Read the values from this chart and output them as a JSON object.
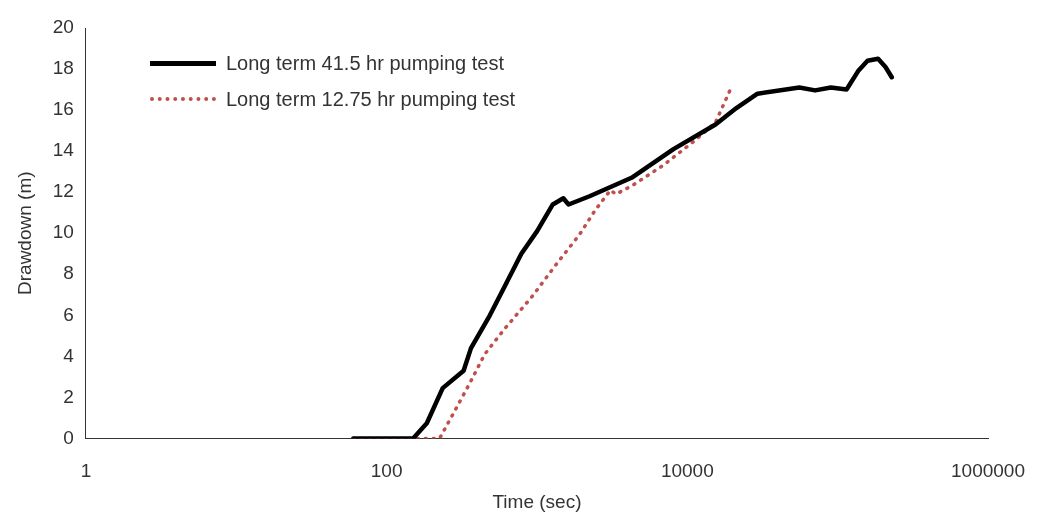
{
  "chart_data": {
    "type": "line",
    "xlabel": "Time (sec)",
    "ylabel": "Drawdown (m)",
    "log": "x",
    "xlim": [
      1,
      1000000
    ],
    "xticks": [
      1,
      100,
      10000,
      1000000
    ],
    "ylim": [
      0,
      20
    ],
    "yticks": [
      0,
      2,
      4,
      6,
      8,
      10,
      12,
      14,
      16,
      18,
      20
    ],
    "grid": false,
    "legend": "top left",
    "marker": "none",
    "series": [
      {
        "name": "Long term 41.5 hr pumping test",
        "color": "#000000",
        "line_style": "solid",
        "x": [
          60,
          150,
          185,
          236,
          325,
          364,
          486,
          619,
          787,
          1002,
          1274,
          1497,
          1622,
          2237,
          4255,
          8090,
          15400,
          21200,
          29300,
          55600,
          70800,
          90100,
          114600,
          136800,
          158000,
          185700,
          208000,
          229000
        ],
        "values": [
          0,
          0,
          0.74,
          2.45,
          3.3,
          4.4,
          6.0,
          7.5,
          9.0,
          10.1,
          11.4,
          11.7,
          11.4,
          11.8,
          12.7,
          14.1,
          15.3,
          16.1,
          16.8,
          17.1,
          16.96,
          17.1,
          17.0,
          17.9,
          18.4,
          18.5,
          18.1,
          17.6
        ]
      },
      {
        "name": "Long term 12.75 hr pumping test",
        "color": "#c0504d",
        "line_style": "dotted",
        "x": [
          60,
          225,
          277,
          352,
          449,
          619,
          925,
          1381,
          1905,
          2427,
          3085,
          3345,
          4255,
          6890,
          11150,
          15400,
          19600
        ],
        "values": [
          0,
          0,
          1.2,
          2.6,
          4.1,
          5.4,
          6.9,
          8.6,
          9.9,
          11.1,
          12.1,
          11.9,
          12.3,
          13.3,
          14.5,
          15.4,
          17.1
        ]
      }
    ]
  }
}
